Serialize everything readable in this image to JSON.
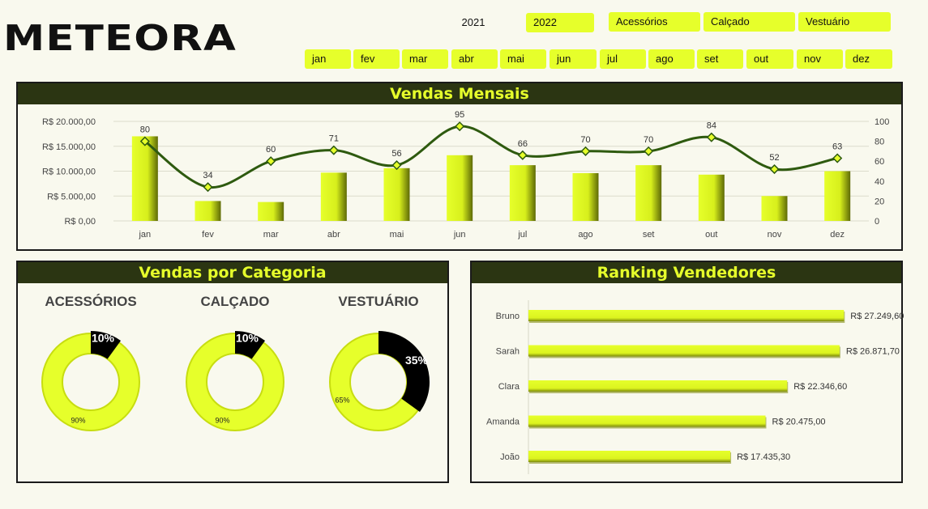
{
  "brand": "METEORA",
  "filters": {
    "years": [
      "2021",
      "2022"
    ],
    "selected_year": "2022",
    "categories": [
      "Acessórios",
      "Calçado",
      "Vestuário"
    ],
    "months": [
      "jan",
      "fev",
      "mar",
      "abr",
      "mai",
      "jun",
      "jul",
      "ago",
      "set",
      "out",
      "nov",
      "dez"
    ]
  },
  "monthly": {
    "title": "Vendas Mensais",
    "left_ticks": [
      "R$ 20.000,00",
      "R$ 15.000,00",
      "R$ 10.000,00",
      "R$ 5.000,00",
      "R$ 0,00"
    ],
    "right_ticks": [
      "100",
      "80",
      "60",
      "40",
      "20",
      "0"
    ]
  },
  "category": {
    "title": "Vendas por Categoria",
    "items": [
      {
        "name": "ACESSÓRIOS",
        "pct_label": "10%",
        "rest_label": "90%"
      },
      {
        "name": "CALÇADO",
        "pct_label": "10%",
        "rest_label": "90%"
      },
      {
        "name": "VESTUÁRIO",
        "pct_label": "35%",
        "rest_label": "65%"
      }
    ]
  },
  "ranking": {
    "title": "Ranking Vendedores"
  },
  "colors": {
    "accent": "#e6ff2b",
    "dark": "#2b3512",
    "line": "#2e5a0f",
    "background": "#f9f9ee"
  },
  "chart_data": [
    {
      "type": "bar",
      "title": "Vendas Mensais",
      "categories": [
        "jan",
        "fev",
        "mar",
        "abr",
        "mai",
        "jun",
        "jul",
        "ago",
        "set",
        "out",
        "nov",
        "dez"
      ],
      "series": [
        {
          "axis": "left",
          "type": "bar",
          "values": [
            17000,
            4000,
            3800,
            9700,
            10600,
            13200,
            11200,
            9600,
            11200,
            9300,
            5000,
            10000
          ]
        },
        {
          "axis": "right",
          "type": "line",
          "values": [
            80,
            34,
            60,
            71,
            56,
            95,
            66,
            70,
            70,
            84,
            52,
            63
          ]
        }
      ],
      "ylim": [
        0,
        20000
      ],
      "y2lim": [
        0,
        100
      ],
      "grid": true
    },
    {
      "type": "pie",
      "title": "ACESSÓRIOS",
      "values": [
        10,
        90
      ]
    },
    {
      "type": "pie",
      "title": "CALÇADO",
      "values": [
        10,
        90
      ]
    },
    {
      "type": "pie",
      "title": "VESTUÁRIO",
      "values": [
        35,
        65
      ]
    },
    {
      "type": "bar",
      "title": "Ranking Vendedores",
      "categories": [
        "Bruno",
        "Sarah",
        "Clara",
        "Amanda",
        "João"
      ],
      "values": [
        27249.6,
        26871.7,
        22346.6,
        20475.0,
        17435.3
      ],
      "value_labels": [
        "R$ 27.249,60",
        "R$ 26.871,70",
        "R$ 22.346,60",
        "R$ 20.475,00",
        "R$ 17.435,30"
      ]
    }
  ]
}
